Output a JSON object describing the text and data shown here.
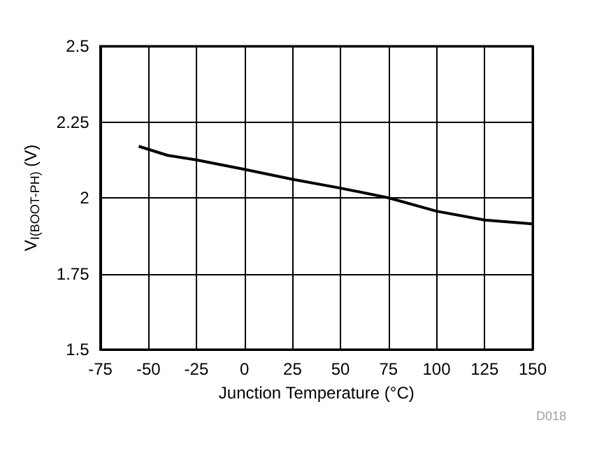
{
  "chart_data": {
    "type": "line",
    "xlabel": "Junction Temperature (°C)",
    "ylabel": "V$_{I(BOOT-PH)}$ (V)",
    "annotations": [
      "D018"
    ],
    "x": [
      -55,
      -40,
      -25,
      0,
      25,
      50,
      75,
      100,
      125,
      150
    ],
    "series": [
      {
        "color": "#000000",
        "values": [
          2.17,
          2.14,
          2.125,
          2.094,
          2.061,
          2.032,
          2.0,
          1.956,
          1.927,
          1.914
        ]
      }
    ],
    "xlim": [
      -75,
      150
    ],
    "xticks": [
      -75,
      -50,
      -25,
      0,
      25,
      50,
      75,
      100,
      125,
      150
    ],
    "ylim": [
      1.5,
      2.5
    ],
    "yticks": [
      1.5,
      1.75,
      2,
      2.25,
      2.5
    ],
    "grid": true,
    "marker": "none",
    "line_style": "solid"
  }
}
